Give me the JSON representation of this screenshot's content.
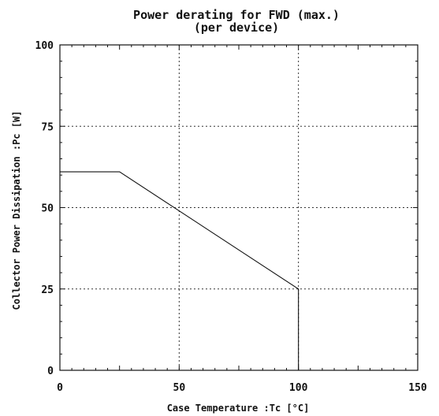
{
  "chart_data": {
    "type": "line",
    "title": "Power derating for FWD (max.)",
    "subtitle": "(per device)",
    "xlabel": "Case Temperature :Tc [°C]",
    "ylabel": "Collector Power Dissipation :Pc [W]",
    "xlim": [
      0,
      150
    ],
    "ylim": [
      0,
      100
    ],
    "xticks": [
      "0",
      "50",
      "100",
      "150"
    ],
    "yticks": [
      "0",
      "25",
      "50",
      "75",
      "100"
    ],
    "grid": true,
    "series": [
      {
        "x": [
          0,
          25,
          100,
          100
        ],
        "y": [
          61,
          61,
          25,
          0
        ]
      }
    ]
  }
}
